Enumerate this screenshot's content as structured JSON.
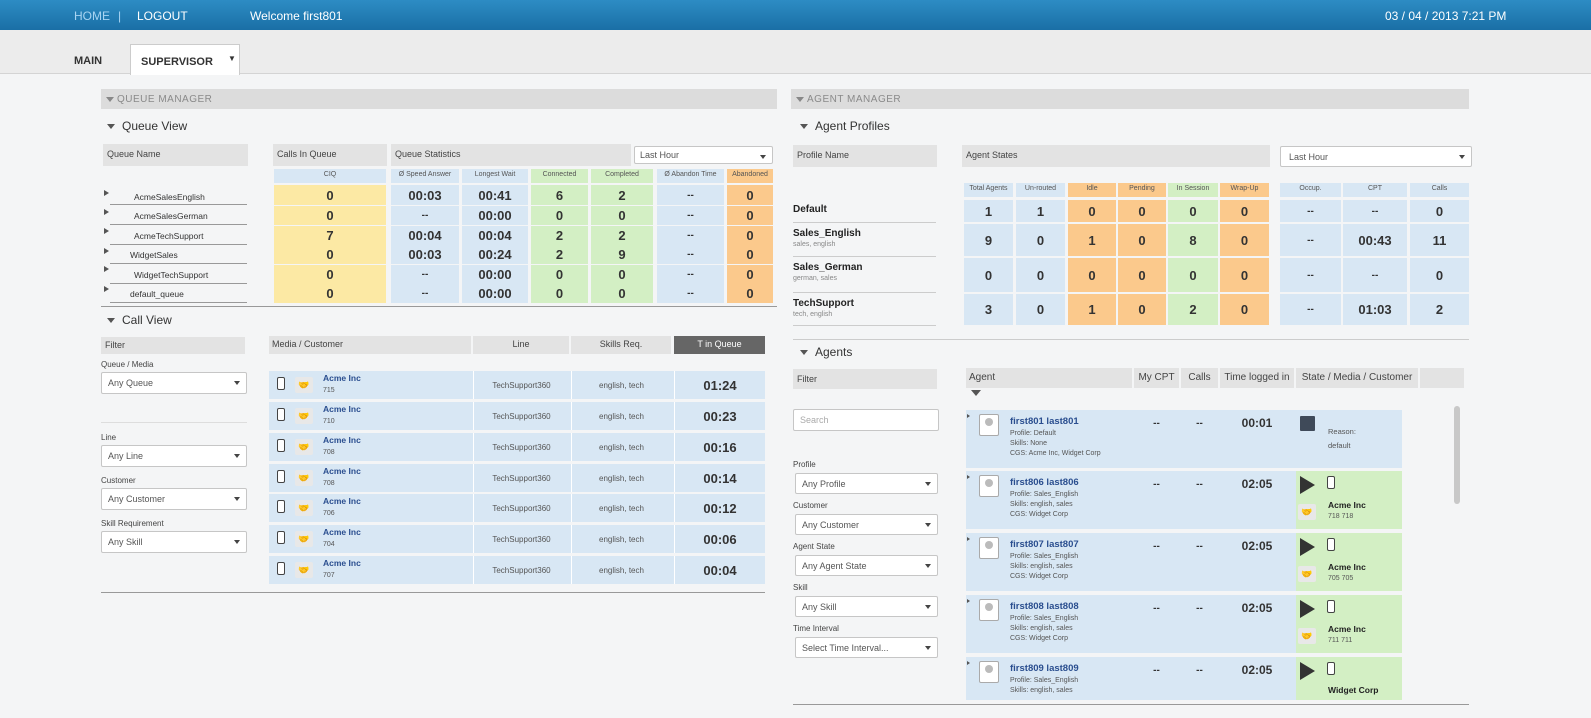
{
  "header": {
    "home": "HOME",
    "logout": "LOGOUT",
    "welcome": "Welcome first801",
    "datetime": "03 / 04 / 2013 7:21 PM"
  },
  "tabs": {
    "main": "MAIN",
    "supervisor": "SUPERVISOR"
  },
  "queue_manager": {
    "title": "QUEUE MANAGER",
    "queue_view": "Queue View",
    "col_queue_name": "Queue Name",
    "col_calls_in_queue": "Calls In Queue",
    "col_queue_statistics": "Queue Statistics",
    "period": "Last Hour",
    "sub_cols": [
      "CIQ",
      "Ø Speed Answer",
      "Longest Wait",
      "Connected",
      "Completed",
      "Ø Abandon Time",
      "Abandoned"
    ],
    "rows": [
      {
        "name": "AcmeSalesEnglish",
        "ciq": "0",
        "speed": "00:03",
        "longest": "00:41",
        "connected": "6",
        "completed": "2",
        "abandon_time": "--",
        "abandoned": "0"
      },
      {
        "name": "AcmeSalesGerman",
        "ciq": "0",
        "speed": "--",
        "longest": "00:00",
        "connected": "0",
        "completed": "0",
        "abandon_time": "--",
        "abandoned": "0"
      },
      {
        "name": "AcmeTechSupport",
        "ciq": "7",
        "speed": "00:04",
        "longest": "00:04",
        "connected": "2",
        "completed": "2",
        "abandon_time": "--",
        "abandoned": "0"
      },
      {
        "name": "WidgetSales",
        "ciq": "0",
        "speed": "00:03",
        "longest": "00:24",
        "connected": "2",
        "completed": "9",
        "abandon_time": "--",
        "abandoned": "0"
      },
      {
        "name": "WidgetTechSupport",
        "ciq": "0",
        "speed": "--",
        "longest": "00:00",
        "connected": "0",
        "completed": "0",
        "abandon_time": "--",
        "abandoned": "0"
      },
      {
        "name": "default_queue",
        "ciq": "0",
        "speed": "--",
        "longest": "00:00",
        "connected": "0",
        "completed": "0",
        "abandon_time": "--",
        "abandoned": "0"
      }
    ],
    "call_view": "Call View",
    "filter": {
      "title": "Filter",
      "queue_media_label": "Queue / Media",
      "queue_media": "Any Queue",
      "line_label": "Line",
      "line": "Any Line",
      "customer_label": "Customer",
      "customer": "Any Customer",
      "skill_label": "Skill Requirement",
      "skill": "Any Skill"
    },
    "call_cols": {
      "media": "Media / Customer",
      "line": "Line",
      "skills": "Skills Req.",
      "time": "T in Queue"
    },
    "calls": [
      {
        "customer": "Acme Inc",
        "id": "715",
        "line": "TechSupport360",
        "skills": "english, tech",
        "time": "01:24"
      },
      {
        "customer": "Acme Inc",
        "id": "710",
        "line": "TechSupport360",
        "skills": "english, tech",
        "time": "00:23"
      },
      {
        "customer": "Acme Inc",
        "id": "708",
        "line": "TechSupport360",
        "skills": "english, tech",
        "time": "00:16"
      },
      {
        "customer": "Acme Inc",
        "id": "708",
        "line": "TechSupport360",
        "skills": "english, tech",
        "time": "00:14"
      },
      {
        "customer": "Acme Inc",
        "id": "706",
        "line": "TechSupport360",
        "skills": "english, tech",
        "time": "00:12"
      },
      {
        "customer": "Acme Inc",
        "id": "704",
        "line": "TechSupport360",
        "skills": "english, tech",
        "time": "00:06"
      },
      {
        "customer": "Acme Inc",
        "id": "707",
        "line": "TechSupport360",
        "skills": "english, tech",
        "time": "00:04"
      }
    ]
  },
  "agent_manager": {
    "title": "AGENT MANAGER",
    "agent_profiles": "Agent Profiles",
    "col_profile_name": "Profile Name",
    "col_agent_states": "Agent States",
    "period": "Last Hour",
    "state_cols": [
      "Total Agents",
      "Un-routed",
      "Idle",
      "Pending",
      "In Session",
      "Wrap-Up"
    ],
    "stat_cols": [
      "Occup.",
      "CPT",
      "Calls"
    ],
    "profiles": [
      {
        "name": "Default",
        "skills": "",
        "total": "1",
        "unrouted": "1",
        "idle": "0",
        "pending": "0",
        "session": "0",
        "wrap": "0",
        "occup": "--",
        "cpt": "--",
        "calls": "0"
      },
      {
        "name": "Sales_English",
        "skills": "sales, english",
        "total": "9",
        "unrouted": "0",
        "idle": "1",
        "pending": "0",
        "session": "8",
        "wrap": "0",
        "occup": "--",
        "cpt": "00:43",
        "calls": "11"
      },
      {
        "name": "Sales_German",
        "skills": "german, sales",
        "total": "0",
        "unrouted": "0",
        "idle": "0",
        "pending": "0",
        "session": "0",
        "wrap": "0",
        "occup": "--",
        "cpt": "--",
        "calls": "0"
      },
      {
        "name": "TechSupport",
        "skills": "tech, english",
        "total": "3",
        "unrouted": "0",
        "idle": "1",
        "pending": "0",
        "session": "2",
        "wrap": "0",
        "occup": "--",
        "cpt": "01:03",
        "calls": "2"
      }
    ],
    "agents_title": "Agents",
    "filter": {
      "title": "Filter",
      "search_placeholder": "Search",
      "profile_label": "Profile",
      "profile": "Any Profile",
      "customer_label": "Customer",
      "customer": "Any Customer",
      "state_label": "Agent State",
      "state": "Any Agent State",
      "skill_label": "Skill",
      "skill": "Any Skill",
      "interval_label": "Time Interval",
      "interval": "Select Time Interval..."
    },
    "agent_cols": {
      "agent": "Agent",
      "cpt": "My CPT",
      "calls": "Calls",
      "time": "Time logged in",
      "state": "State / Media / Customer"
    },
    "agents": [
      {
        "name": "first801 last801",
        "profile": "Profile: Default",
        "skills": "Skills: None",
        "cgs": "CGS: Acme Inc, Widget Corp",
        "cpt": "--",
        "calls": "--",
        "time": "00:01",
        "reason": "Reason:",
        "reason_value": "default",
        "customer": "",
        "customer_id": ""
      },
      {
        "name": "first806 last806",
        "profile": "Profile: Sales_English",
        "skills": "Skills: english, sales",
        "cgs": "CGS: Widget Corp",
        "cpt": "--",
        "calls": "--",
        "time": "02:05",
        "reason": "",
        "reason_value": "",
        "customer": "Acme Inc",
        "customer_id": "718 718"
      },
      {
        "name": "first807 last807",
        "profile": "Profile: Sales_English",
        "skills": "Skills: english, sales",
        "cgs": "CGS: Widget Corp",
        "cpt": "--",
        "calls": "--",
        "time": "02:05",
        "reason": "",
        "reason_value": "",
        "customer": "Acme Inc",
        "customer_id": "705 705"
      },
      {
        "name": "first808 last808",
        "profile": "Profile: Sales_English",
        "skills": "Skills: english, sales",
        "cgs": "CGS: Widget Corp",
        "cpt": "--",
        "calls": "--",
        "time": "02:05",
        "reason": "",
        "reason_value": "",
        "customer": "Acme Inc",
        "customer_id": "711 711"
      },
      {
        "name": "first809 last809",
        "profile": "Profile: Sales_English",
        "skills": "Skills: english, sales",
        "cgs": "",
        "cpt": "--",
        "calls": "--",
        "time": "02:05",
        "reason": "",
        "reason_value": "",
        "customer": "Widget Corp",
        "customer_id": ""
      }
    ]
  }
}
